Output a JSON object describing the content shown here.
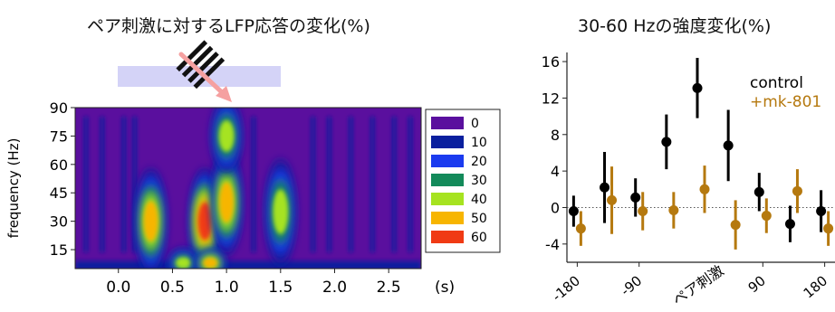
{
  "left": {
    "title": "ペア刺激に対するLFP応答の変化(%)",
    "ylabel": "frequency (Hz)",
    "xunit": "(s)",
    "colorbar": {
      "levels": [
        {
          "label": "0",
          "color": "#5a0f9e"
        },
        {
          "label": "10",
          "color": "#0a1f9e"
        },
        {
          "label": "20",
          "color": "#1b3bef"
        },
        {
          "label": "30",
          "color": "#138a5a"
        },
        {
          "label": "40",
          "color": "#a6e320"
        },
        {
          "label": "50",
          "color": "#f7b500"
        },
        {
          "label": "60",
          "color": "#f03a14"
        }
      ]
    }
  },
  "right": {
    "title": "30-60 Hzの強度変化(%)",
    "xlabel": "ペア刺激"
  },
  "chart_data": [
    {
      "type": "heatmap",
      "title": "ペア刺激に対するLFP応答の変化(%)",
      "ylabel": "frequency (Hz)",
      "xlabel": "(s)",
      "xlim": [
        -0.4,
        2.8
      ],
      "ylim": [
        5,
        90
      ],
      "xticks": [
        "0.0",
        "0.5",
        "1.0",
        "1.5",
        "2.0",
        "2.5"
      ],
      "yticks": [
        "15",
        "30",
        "45",
        "60",
        "75",
        "90"
      ],
      "color_scale": [
        "0",
        "10",
        "20",
        "30",
        "40",
        "50",
        "60"
      ],
      "hotspots": [
        {
          "t": 0.3,
          "f": 30,
          "value": 45
        },
        {
          "t": 0.8,
          "f": 30,
          "value": 60
        },
        {
          "t": 1.0,
          "f": 40,
          "value": 50
        },
        {
          "t": 1.0,
          "f": 75,
          "value": 40
        },
        {
          "t": 1.5,
          "f": 35,
          "value": 40
        },
        {
          "t": 0.6,
          "f": 8,
          "value": 40
        },
        {
          "t": 0.85,
          "f": 8,
          "value": 45
        }
      ]
    },
    {
      "type": "scatter",
      "title": "30-60 Hzの強度変化(%)",
      "xlabel": "ペア刺激",
      "xticks": [
        "-180",
        "-90",
        "90",
        "180"
      ],
      "yticks": [
        "-4",
        "0",
        "4",
        "8",
        "12",
        "16"
      ],
      "ylim": [
        -6,
        17
      ],
      "xlim": [
        -195,
        195
      ],
      "reference_line": 0,
      "series": [
        {
          "name": "control",
          "color": "#000000",
          "points": [
            {
              "x": -180,
              "y": -0.4,
              "err": 1.7
            },
            {
              "x": -135,
              "y": 2.2,
              "err": 3.9
            },
            {
              "x": -90,
              "y": 1.1,
              "err": 2.1
            },
            {
              "x": -45,
              "y": 7.2,
              "err": 3.0
            },
            {
              "x": 0,
              "y": 13.1,
              "err": 3.3
            },
            {
              "x": 45,
              "y": 6.8,
              "err": 3.9
            },
            {
              "x": 90,
              "y": 1.7,
              "err": 2.1
            },
            {
              "x": 135,
              "y": -1.8,
              "err": 2.0
            },
            {
              "x": 180,
              "y": -0.4,
              "err": 2.3
            }
          ]
        },
        {
          "name": "+mk-801",
          "color": "#b5790f",
          "points": [
            {
              "x": -180,
              "y": -2.3,
              "err": 1.9
            },
            {
              "x": -135,
              "y": 0.8,
              "err": 3.7
            },
            {
              "x": -90,
              "y": -0.4,
              "err": 2.1
            },
            {
              "x": -45,
              "y": -0.3,
              "err": 2.0
            },
            {
              "x": 0,
              "y": 2.0,
              "err": 2.6
            },
            {
              "x": 45,
              "y": -1.9,
              "err": 2.7
            },
            {
              "x": 90,
              "y": -0.9,
              "err": 1.9
            },
            {
              "x": 135,
              "y": 1.8,
              "err": 2.4
            },
            {
              "x": 180,
              "y": -2.3,
              "err": 1.9
            }
          ]
        }
      ]
    }
  ]
}
